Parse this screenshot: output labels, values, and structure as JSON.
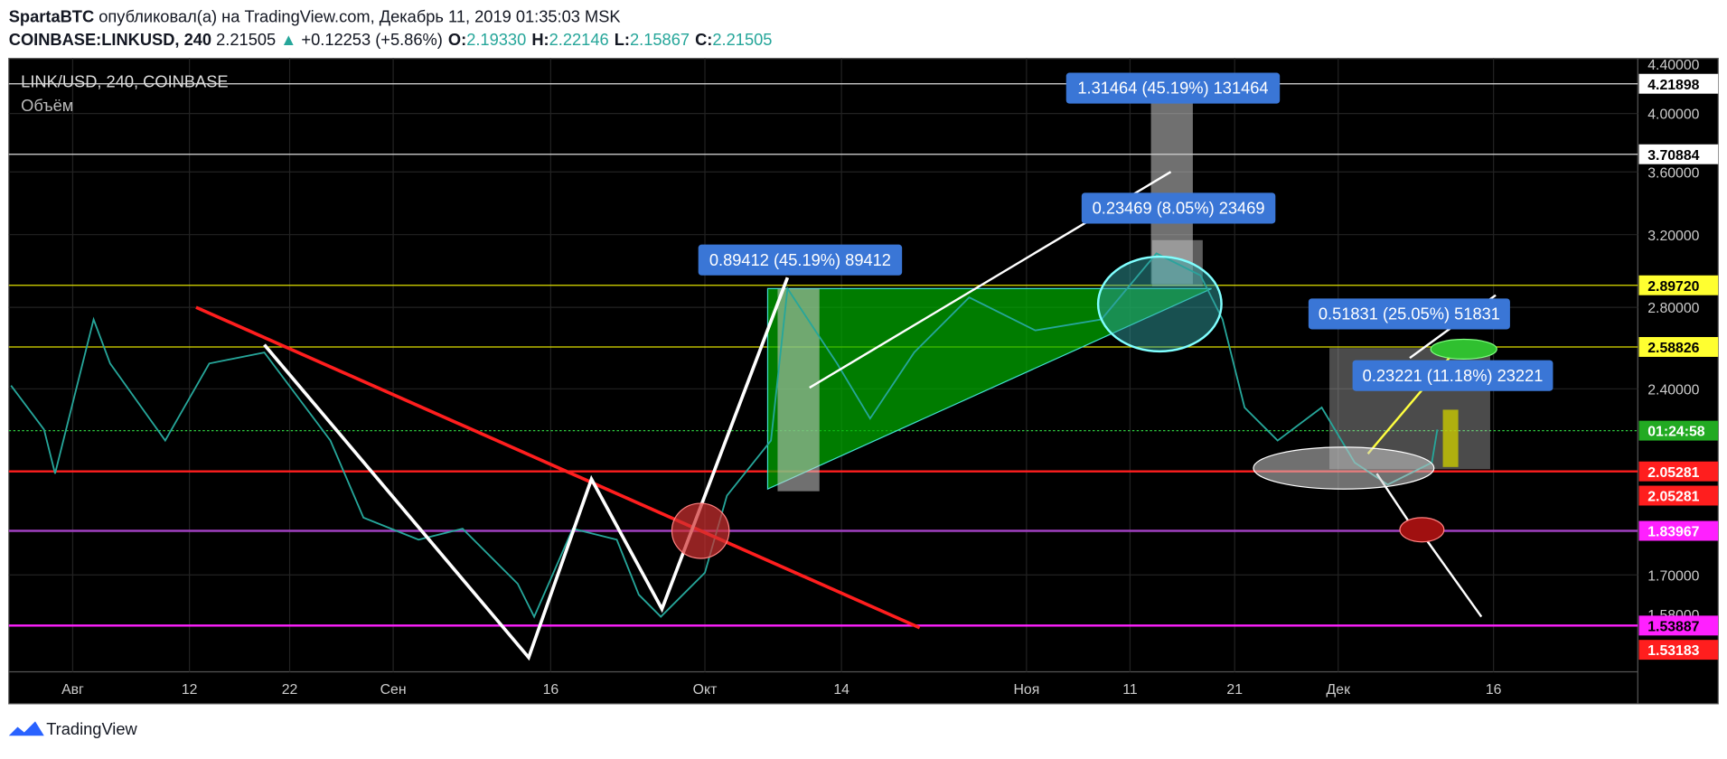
{
  "header": {
    "author": "SpartaBTC",
    "published": "опубликовал(а) на TradingView.com, Декабрь 11, 2019 01:35:03 MSK",
    "symbol": "COINBASE:LINKUSD, 240",
    "last": "2.21505",
    "arrow": "▲",
    "change": "+0.12253 (+5.86%)",
    "ohlc": [
      {
        "label": "O:",
        "value": "2.19330"
      },
      {
        "label": "H:",
        "value": "2.22146"
      },
      {
        "label": "L:",
        "value": "2.15867"
      },
      {
        "label": "C:",
        "value": "2.21505"
      }
    ]
  },
  "legend": {
    "title": "LINK/USD, 240, COINBASE",
    "volume": "Объём"
  },
  "price_axis": [
    "4.40000",
    "4.21898",
    "4.00000",
    "3.70884",
    "3.60000",
    "3.20000",
    "2.89720",
    "2.80000",
    "2.58826",
    "2.40000",
    "01:24:58",
    "2.05281",
    "2.05281",
    "1.83967",
    "1.70000",
    "1.58000",
    "1.53887",
    "1.53183"
  ],
  "time_axis": [
    "Авг",
    "12",
    "22",
    "Сен",
    "16",
    "Окт",
    "14",
    "Ноя",
    "11",
    "21",
    "Дек",
    "16"
  ],
  "annotations": [
    "0.89412 (45.19%) 89412",
    "1.31464 (45.19%) 131464",
    "0.23469 (8.05%) 23469",
    "0.51831 (25.05%) 51831",
    "0.23221 (11.18%) 23221"
  ],
  "footer": {
    "brand": "TradingView"
  }
}
